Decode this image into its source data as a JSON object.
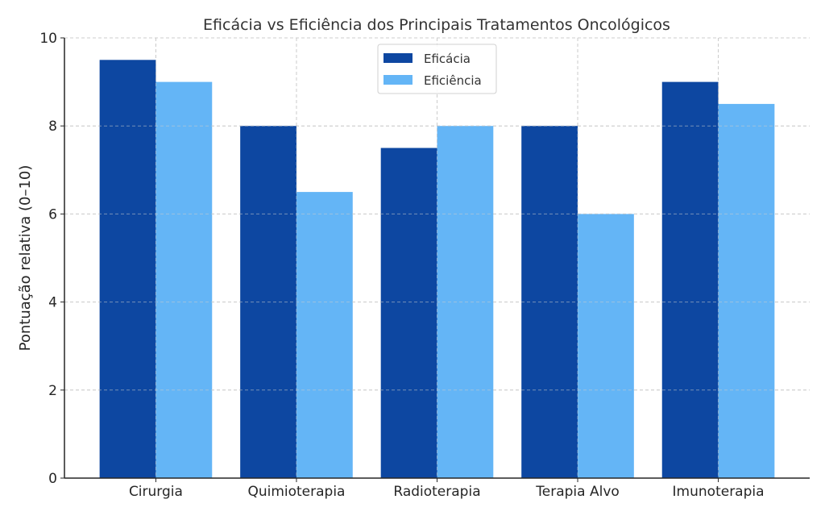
{
  "chart_data": {
    "type": "bar",
    "title": "Eficácia vs Eficiência dos Principais Tratamentos Oncológicos",
    "xlabel": "",
    "ylabel": "Pontuação relativa (0–10)",
    "categories": [
      "Cirurgia",
      "Quimioterapia",
      "Radioterapia",
      "Terapia Alvo",
      "Imunoterapia"
    ],
    "series": [
      {
        "name": "Eficácia",
        "color": "#0d47a1",
        "values": [
          9.5,
          8,
          7.5,
          8,
          9
        ]
      },
      {
        "name": "Eficiência",
        "color": "#64b5f6",
        "values": [
          9,
          6.5,
          8,
          6,
          8.5
        ]
      }
    ],
    "ylim": [
      0,
      10
    ],
    "yticks": [
      0,
      2,
      4,
      6,
      8,
      10
    ],
    "grid": true,
    "legend_position": "top-center"
  }
}
